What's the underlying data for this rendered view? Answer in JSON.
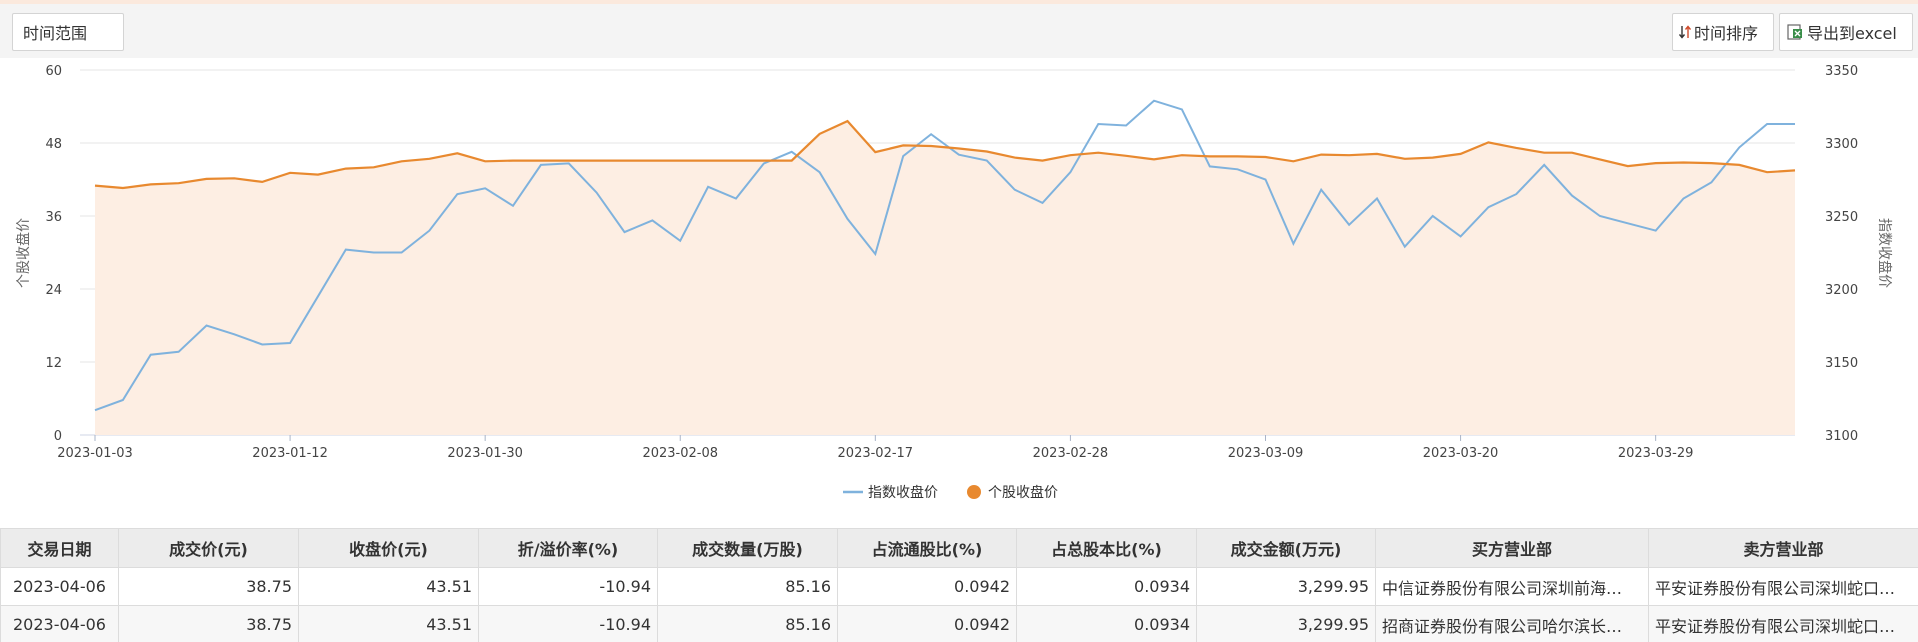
{
  "toolbar": {
    "range_label": "时间范围",
    "sort_label": "时间排序",
    "export_label": "导出到excel"
  },
  "chart_data": {
    "type": "line",
    "xlabel": "",
    "ylabel_left": "个股收盘价",
    "ylabel_right": "指数收盘价",
    "y_left_range": [
      0,
      60
    ],
    "y_left_ticks": [
      "0",
      "12",
      "24",
      "36",
      "48",
      "60"
    ],
    "y_right_range": [
      3100,
      3350
    ],
    "y_right_ticks": [
      "3100",
      "3150",
      "3200",
      "3250",
      "3300",
      "3350"
    ],
    "x_ticks": [
      "2023-01-03",
      "2023-01-12",
      "2023-01-30",
      "2023-02-08",
      "2023-02-17",
      "2023-02-28",
      "2023-03-09",
      "2023-03-20",
      "2023-03-29"
    ],
    "x_tick_index": [
      0,
      7,
      14,
      21,
      28,
      35,
      42,
      49,
      56
    ],
    "grid": true,
    "legend_position": "bottom",
    "series": [
      {
        "name": "指数收盘价",
        "axis": "right",
        "color": "#7fb2dd",
        "values": [
          3117,
          3124,
          3155,
          3157,
          3175,
          3169,
          3162,
          3163,
          3195,
          3227,
          3225,
          3225,
          3240,
          3265,
          3269,
          3257,
          3285,
          3286,
          3266,
          3239,
          3247,
          3233,
          3270,
          3262,
          3286,
          3294,
          3280,
          3248,
          3224,
          3291,
          3306,
          3292,
          3288,
          3268,
          3259,
          3280,
          3313,
          3312,
          3329,
          3323,
          3284,
          3282,
          3275,
          3231,
          3268,
          3244,
          3262,
          3229,
          3250,
          3236,
          3256,
          3265,
          3285,
          3264,
          3250,
          3245,
          3240,
          3262,
          3273,
          3297,
          3313,
          3313
        ]
      },
      {
        "name": "个股收盘价",
        "color": "#e8892f",
        "axis": "left",
        "values": [
          41.0,
          40.6,
          41.2,
          41.4,
          42.1,
          42.2,
          41.6,
          43.1,
          42.8,
          43.8,
          44.0,
          45.0,
          45.4,
          46.3,
          45.0,
          45.1,
          45.1,
          45.1,
          45.1,
          45.1,
          45.1,
          45.1,
          45.1,
          45.1,
          45.1,
          45.1,
          49.5,
          51.6,
          46.5,
          47.6,
          47.5,
          47.1,
          46.6,
          45.6,
          45.1,
          46.0,
          46.4,
          45.9,
          45.3,
          46.0,
          45.8,
          45.8,
          45.7,
          45.0,
          46.1,
          46.0,
          46.2,
          45.4,
          45.6,
          46.2,
          48.1,
          47.2,
          46.4,
          46.4,
          45.3,
          44.2,
          44.7,
          44.8,
          44.7,
          44.4,
          43.2,
          43.5
        ]
      }
    ]
  },
  "table": {
    "headers": [
      "交易日期",
      "成交价(元)",
      "收盘价(元)",
      "折/溢价率(%)",
      "成交数量(万股)",
      "占流通股比(%)",
      "占总股本比(%)",
      "成交金额(万元)",
      "买方营业部",
      "卖方营业部"
    ],
    "rows": [
      [
        "2023-04-06",
        "38.75",
        "43.51",
        "-10.94",
        "85.16",
        "0.0942",
        "0.0934",
        "3,299.95",
        "中信证券股份有限公司深圳前海…",
        "平安证券股份有限公司深圳蛇口…"
      ],
      [
        "2023-04-06",
        "38.75",
        "43.51",
        "-10.94",
        "85.16",
        "0.0942",
        "0.0934",
        "3,299.95",
        "招商证券股份有限公司哈尔滨长…",
        "平安证券股份有限公司深圳蛇口…"
      ]
    ]
  }
}
